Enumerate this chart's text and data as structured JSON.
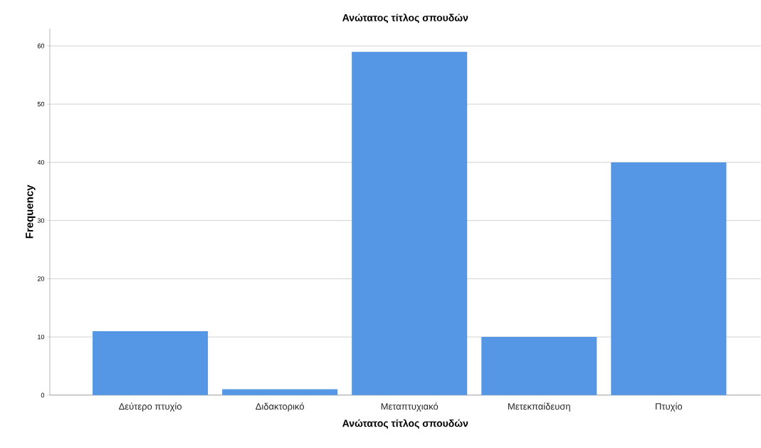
{
  "chart_data": {
    "type": "bar",
    "title": "Ανώτατος τίτλος σπουδών",
    "xlabel": "Ανώτατος τίτλος σπουδών",
    "ylabel": "Frequency",
    "categories": [
      "Δεύτερο πτυχίο",
      "Διδακτορικό",
      "Μεταπτυχιακό",
      "Μετεκπαίδευση",
      "Πτυχίο"
    ],
    "values": [
      11,
      1,
      59,
      10,
      40
    ],
    "color": "#5596e5",
    "ylim": [
      0,
      63
    ],
    "yticks": [
      0,
      10,
      20,
      30,
      40,
      50,
      60
    ],
    "grid": "y"
  }
}
